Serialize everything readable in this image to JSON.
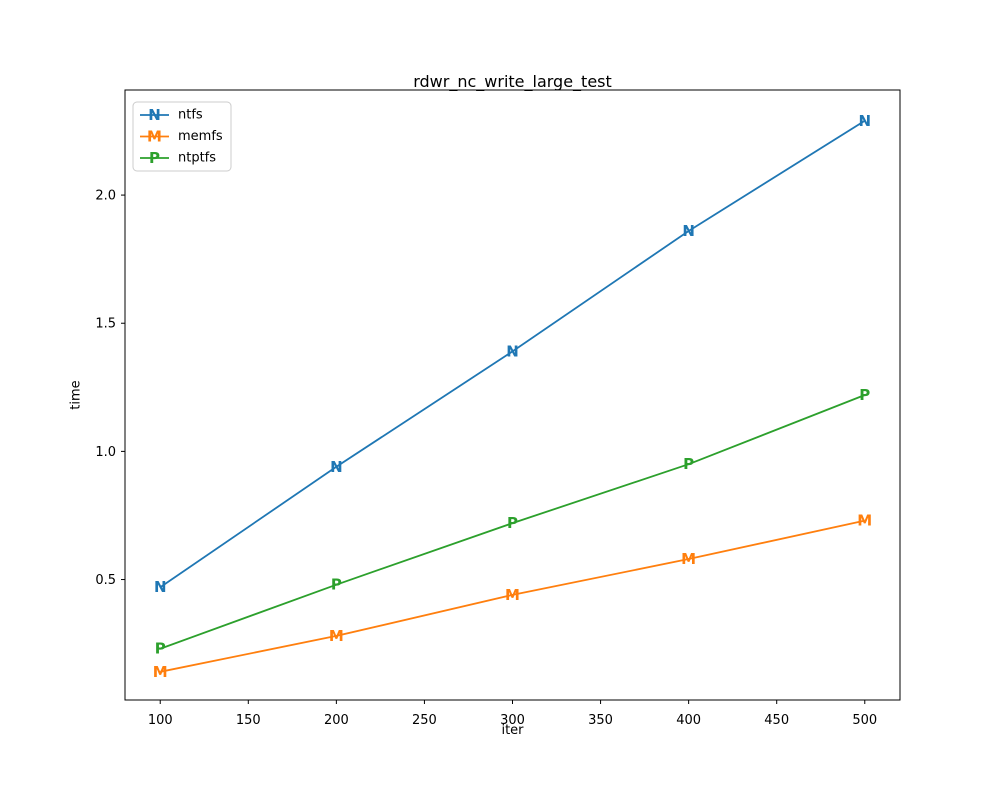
{
  "chart_data": {
    "type": "line",
    "title": "rdwr_nc_write_large_test",
    "xlabel": "iter",
    "ylabel": "time",
    "x": [
      100,
      200,
      300,
      400,
      500
    ],
    "series": [
      {
        "name": "ntfs",
        "marker": "N",
        "color": "#1f77b4",
        "values": [
          0.47,
          0.94,
          1.39,
          1.86,
          2.29
        ]
      },
      {
        "name": "memfs",
        "marker": "M",
        "color": "#ff7f0e",
        "values": [
          0.14,
          0.28,
          0.44,
          0.58,
          0.73
        ]
      },
      {
        "name": "ntptfs",
        "marker": "P",
        "color": "#2ca02c",
        "values": [
          0.23,
          0.48,
          0.72,
          0.95,
          1.22
        ]
      }
    ],
    "xticks": [
      100,
      150,
      200,
      250,
      300,
      350,
      400,
      450,
      500
    ],
    "xtick_labels": [
      "100",
      "150",
      "200",
      "250",
      "300",
      "350",
      "400",
      "450",
      "500"
    ],
    "yticks": [
      0.5,
      1.0,
      1.5,
      2.0
    ],
    "ytick_labels": [
      "0.5",
      "1.0",
      "1.5",
      "2.0"
    ],
    "xlim": [
      80,
      520
    ],
    "ylim": [
      0.03,
      2.41
    ],
    "grid": false,
    "legend_position": "upper-left",
    "legend_entries": [
      "ntfs",
      "memfs",
      "ntptfs"
    ],
    "frame_color": "#000000",
    "legend_border_color": "#cccccc",
    "background_color": "#ffffff"
  }
}
